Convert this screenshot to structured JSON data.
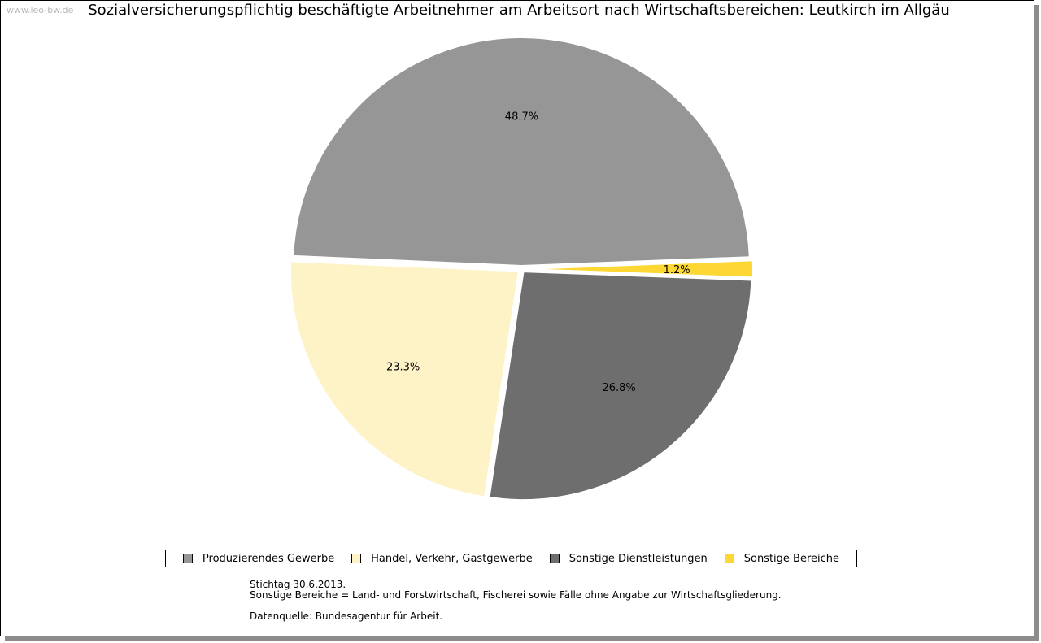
{
  "watermark": "www.leo-bw.de",
  "chart_data": {
    "type": "pie",
    "title": "Sozialversicherungspflichtig beschäftigte Arbeitnehmer am Arbeitsort nach Wirtschaftsbereichen: Leutkirch im Allgäu",
    "categories": [
      "Produzierendes Gewerbe",
      "Sonstige Bereiche",
      "Sonstige Dienstleistungen",
      "Handel, Verkehr, Gastgewerbe"
    ],
    "values": [
      48.7,
      1.2,
      26.8,
      23.3
    ],
    "labels": [
      "48.7%",
      "1.2%",
      "26.8%",
      "23.3%"
    ],
    "colors": [
      "#969696",
      "#fdd835",
      "#6e6e6e",
      "#fdf3c6"
    ],
    "legend": [
      {
        "label": "Produzierendes Gewerbe",
        "color": "#969696"
      },
      {
        "label": "Handel, Verkehr, Gastgewerbe",
        "color": "#fdf3c6"
      },
      {
        "label": "Sonstige Dienstleistungen",
        "color": "#6e6e6e"
      },
      {
        "label": "Sonstige Bereiche",
        "color": "#fdd835"
      }
    ],
    "legend_position": "bottom"
  },
  "notes": {
    "line1": "Stichtag 30.6.2013.",
    "line2": "Sonstige Bereiche = Land- und Forstwirtschaft, Fischerei sowie Fälle ohne Angabe zur Wirtschaftsgliederung.",
    "line3": "Datenquelle: Bundesagentur für Arbeit."
  }
}
